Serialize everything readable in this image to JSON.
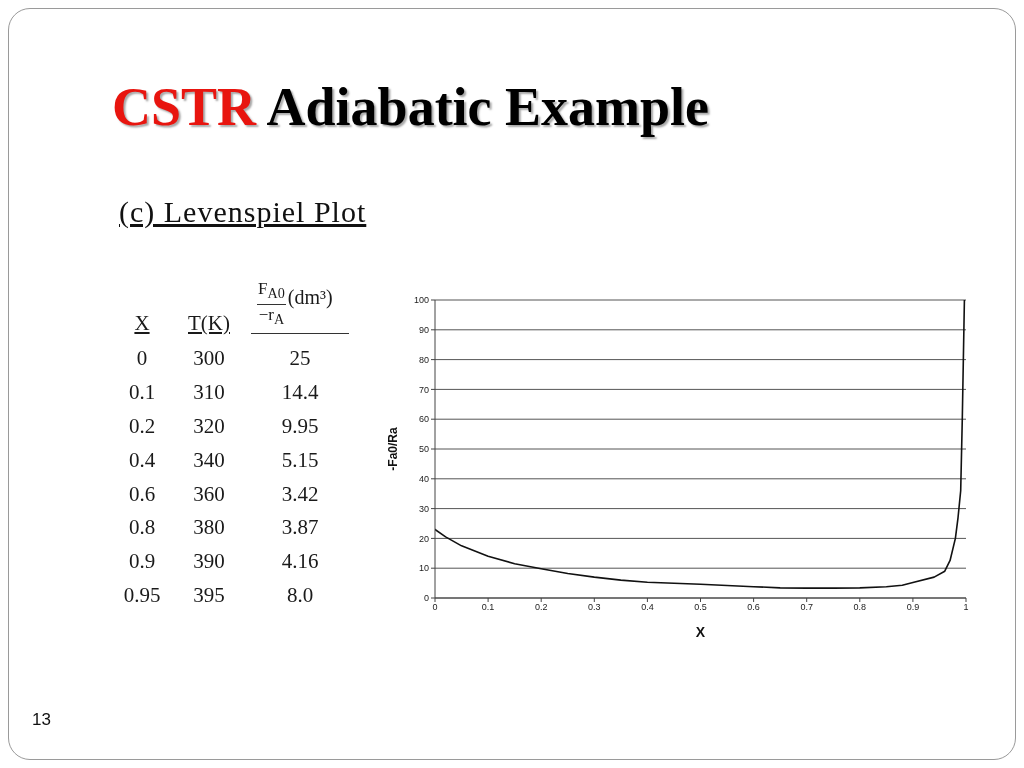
{
  "chart_data": [
    {
      "type": "other",
      "xlabel": "X",
      "categories": [
        "0",
        "0.1",
        "0.2",
        "0.4",
        "0.6",
        "0.8",
        "0.9",
        "0.95"
      ],
      "data_labels": true,
      "series": [
        {
          "name": "T(K)",
          "values": [
            300,
            310,
            320,
            340,
            360,
            380,
            390,
            395
          ]
        },
        {
          "name": "F$_{A0}$ −r$_{A}$ (dm³)",
          "values": [
            25,
            14.4,
            9.95,
            5.15,
            3.42,
            3.87,
            4.16,
            8.0
          ],
          "value_labels": [
            "25",
            "14.4",
            "9.95",
            "5.15",
            "3.42",
            "3.87",
            "4.16",
            "8.0"
          ]
        }
      ]
    },
    {
      "type": "line",
      "title": "CSTR Adiabatic Example",
      "subtitle": "(c) Levenspiel Plot",
      "xlabel": "X",
      "ylabel": "-Fa0/Ra",
      "annotations": [
        "13"
      ],
      "x": [
        0,
        0.02,
        0.05,
        0.1,
        0.15,
        0.2,
        0.25,
        0.3,
        0.35,
        0.4,
        0.5,
        0.6,
        0.65,
        0.7,
        0.75,
        0.8,
        0.85,
        0.88,
        0.9,
        0.94,
        0.96,
        0.97,
        0.98,
        0.985,
        0.99,
        0.993,
        0.997
      ],
      "values": [
        23,
        20.5,
        17.5,
        14,
        11.5,
        9.8,
        8.2,
        7,
        6,
        5.3,
        4.6,
        3.8,
        3.4,
        3.3,
        3.3,
        3.4,
        3.8,
        4.3,
        5.2,
        7,
        9,
        12.6,
        20,
        27,
        36,
        60,
        100
      ],
      "color": "#111111",
      "line_style": "solid",
      "xlim": [
        0,
        1
      ],
      "xticks": [
        0,
        0.1,
        0.2,
        0.3,
        0.4,
        0.5,
        0.6,
        0.7,
        0.8,
        0.9,
        1
      ],
      "ylim": [
        0,
        100
      ],
      "yticks": [
        0,
        10,
        20,
        30,
        40,
        50,
        60,
        70,
        80,
        90,
        100
      ],
      "grid": "y"
    }
  ]
}
